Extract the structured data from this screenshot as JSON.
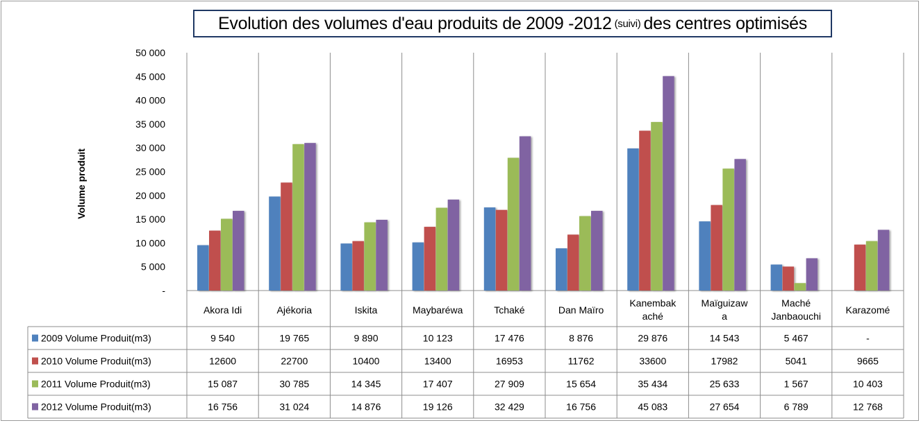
{
  "chart_data": {
    "type": "bar",
    "title": {
      "before": "Evolution des volumes d'eau produits de 2009 -2012",
      "note": "(suivi)",
      "after": "des centres optimisés"
    },
    "ylabel": "Volume produit",
    "ylim": [
      0,
      50000
    ],
    "yticks": [
      "-",
      "5 000",
      "10 000",
      "15 000",
      "20 000",
      "25 000",
      "30 000",
      "35 000",
      "40 000",
      "45 000",
      "50 000"
    ],
    "ytick_values": [
      0,
      5000,
      10000,
      15000,
      20000,
      25000,
      30000,
      35000,
      40000,
      45000,
      50000
    ],
    "grid": "vertical category separators",
    "legend": "data table below the chart",
    "categories": [
      "Akora Idi",
      "Ajékoria",
      "Iskita",
      "Maybaréwa",
      "Tchaké",
      "Dan Maïro",
      "Kanembak aché",
      "Maïguizaw a",
      "Maché Janbaouchi",
      "Karazomé"
    ],
    "category_lines": [
      [
        "Akora Idi"
      ],
      [
        "Ajékoria"
      ],
      [
        "Iskita"
      ],
      [
        "Maybaréwa"
      ],
      [
        "Tchaké"
      ],
      [
        "Dan Maïro"
      ],
      [
        "Kanembak",
        "aché"
      ],
      [
        "Maïguizaw",
        "a"
      ],
      [
        "Maché",
        "Janbaouchi"
      ],
      [
        "Karazomé"
      ]
    ],
    "series": [
      {
        "name": "2009 Volume  Produit(m3)",
        "color": "#4f81bd",
        "values": [
          9540,
          19765,
          9890,
          10123,
          17476,
          8876,
          29876,
          14543,
          5467,
          null
        ],
        "labels": [
          "9 540",
          "19 765",
          "9 890",
          "10 123",
          "17 476",
          "8 876",
          "29 876",
          "14 543",
          "5 467",
          "-"
        ]
      },
      {
        "name": "2010 Volume  Produit(m3)",
        "color": "#c0504d",
        "values": [
          12600,
          22700,
          10400,
          13400,
          16953,
          11762,
          33600,
          17982,
          5041,
          9665
        ],
        "labels": [
          "12600",
          "22700",
          "10400",
          "13400",
          "16953",
          "11762",
          "33600",
          "17982",
          "5041",
          "9665"
        ]
      },
      {
        "name": "2011 Volume  Produit(m3)",
        "color": "#9bbb59",
        "values": [
          15087,
          30785,
          14345,
          17407,
          27909,
          15654,
          35434,
          25633,
          1567,
          10403
        ],
        "labels": [
          "15 087",
          "30 785",
          "14 345",
          "17 407",
          "27 909",
          "15 654",
          "35 434",
          "25 633",
          "1 567",
          "10 403"
        ]
      },
      {
        "name": "2012 Volume  Produit(m3)",
        "color": "#8064a2",
        "values": [
          16756,
          31024,
          14876,
          19126,
          32429,
          16756,
          45083,
          27654,
          6789,
          12768
        ],
        "labels": [
          "16 756",
          "31 024",
          "14 876",
          "19 126",
          "32 429",
          "16 756",
          "45 083",
          "27 654",
          "6 789",
          "12 768"
        ]
      }
    ]
  }
}
